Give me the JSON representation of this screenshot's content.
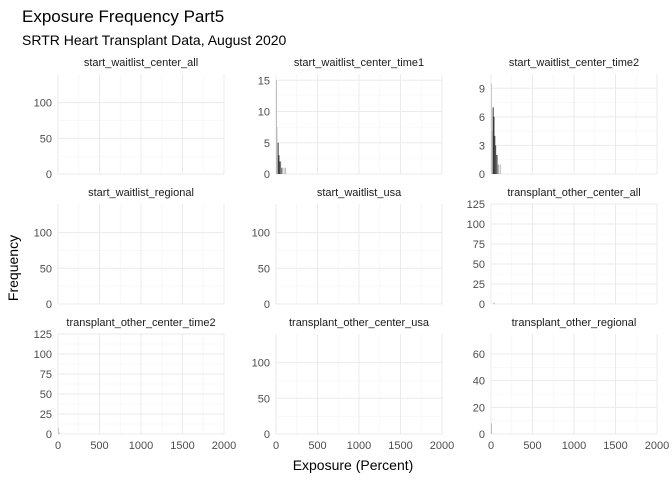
{
  "title": "Exposure Frequency Part5",
  "subtitle": "SRTR Heart Transplant Data, August 2020",
  "xlabel": "Exposure (Percent)",
  "ylabel": "Frequency",
  "bar_color": "#1a1a1a",
  "chart_data": {
    "type": "bar",
    "xlim": [
      0,
      2000
    ],
    "x_ticks": [
      0,
      500,
      1000,
      1500,
      2000
    ],
    "bin_width": 10,
    "panels": [
      {
        "name": "start_waitlist_center_all",
        "ylim": [
          0,
          140
        ],
        "y_ticks": [
          0,
          50,
          100
        ],
        "show_x_ticks": false,
        "bins": []
      },
      {
        "name": "start_waitlist_center_time1",
        "ylim": [
          0,
          16
        ],
        "y_ticks": [
          0,
          5,
          10,
          15
        ],
        "show_x_ticks": false,
        "bins": [
          {
            "x": 0,
            "count": 15,
            "alpha": 0.25
          },
          {
            "x": 10,
            "count": 7.5,
            "alpha": 0.15
          },
          {
            "x": 20,
            "count": 5,
            "alpha": 0.85
          },
          {
            "x": 30,
            "count": 3,
            "alpha": 0.8
          },
          {
            "x": 40,
            "count": 2,
            "alpha": 0.75
          },
          {
            "x": 50,
            "count": 2,
            "alpha": 0.5
          },
          {
            "x": 60,
            "count": 1,
            "alpha": 0.5
          },
          {
            "x": 70,
            "count": 1,
            "alpha": 0.3
          },
          {
            "x": 80,
            "count": 1,
            "alpha": 0.2
          },
          {
            "x": 100,
            "count": 1,
            "alpha": 0.25
          },
          {
            "x": 110,
            "count": 1,
            "alpha": 0.25
          }
        ]
      },
      {
        "name": "start_waitlist_center_time2",
        "ylim": [
          0,
          10.5
        ],
        "y_ticks": [
          0,
          3,
          6,
          9
        ],
        "show_x_ticks": false,
        "bins": [
          {
            "x": 0,
            "count": 9.5,
            "alpha": 0.2
          },
          {
            "x": 10,
            "count": 4.5,
            "alpha": 0.15
          },
          {
            "x": 20,
            "count": 7,
            "alpha": 0.9
          },
          {
            "x": 30,
            "count": 6,
            "alpha": 0.8
          },
          {
            "x": 40,
            "count": 4,
            "alpha": 0.8
          },
          {
            "x": 50,
            "count": 3,
            "alpha": 0.75
          },
          {
            "x": 60,
            "count": 2,
            "alpha": 0.6
          },
          {
            "x": 70,
            "count": 2,
            "alpha": 0.5
          },
          {
            "x": 80,
            "count": 1,
            "alpha": 0.35
          },
          {
            "x": 90,
            "count": 1,
            "alpha": 0.25
          },
          {
            "x": 110,
            "count": 1,
            "alpha": 0.25
          }
        ]
      },
      {
        "name": "start_waitlist_regional",
        "ylim": [
          0,
          140
        ],
        "y_ticks": [
          0,
          50,
          100
        ],
        "show_x_ticks": false,
        "bins": []
      },
      {
        "name": "start_waitlist_usa",
        "ylim": [
          0,
          140
        ],
        "y_ticks": [
          0,
          50,
          100
        ],
        "show_x_ticks": false,
        "bins": []
      },
      {
        "name": "transplant_other_center_all",
        "ylim": [
          0,
          125
        ],
        "y_ticks": [
          0,
          25,
          50,
          75,
          100,
          125
        ],
        "show_x_ticks": false,
        "bins": [
          {
            "x": 30,
            "count": 2,
            "alpha": 0.3
          }
        ]
      },
      {
        "name": "transplant_other_center_time2",
        "ylim": [
          0,
          125
        ],
        "y_ticks": [
          0,
          25,
          50,
          75,
          100,
          125
        ],
        "show_x_ticks": true,
        "bins": [
          {
            "x": 0,
            "count": 8,
            "alpha": 0.2
          },
          {
            "x": 10,
            "count": 2,
            "alpha": 0.2
          }
        ]
      },
      {
        "name": "transplant_other_center_usa",
        "ylim": [
          0,
          140
        ],
        "y_ticks": [
          0,
          50,
          100
        ],
        "show_x_ticks": true,
        "bins": []
      },
      {
        "name": "transplant_other_regional",
        "ylim": [
          0,
          75
        ],
        "y_ticks": [
          0,
          20,
          40,
          60
        ],
        "show_x_ticks": true,
        "bins": [
          {
            "x": 0,
            "count": 8,
            "alpha": 0.25
          }
        ]
      }
    ]
  }
}
